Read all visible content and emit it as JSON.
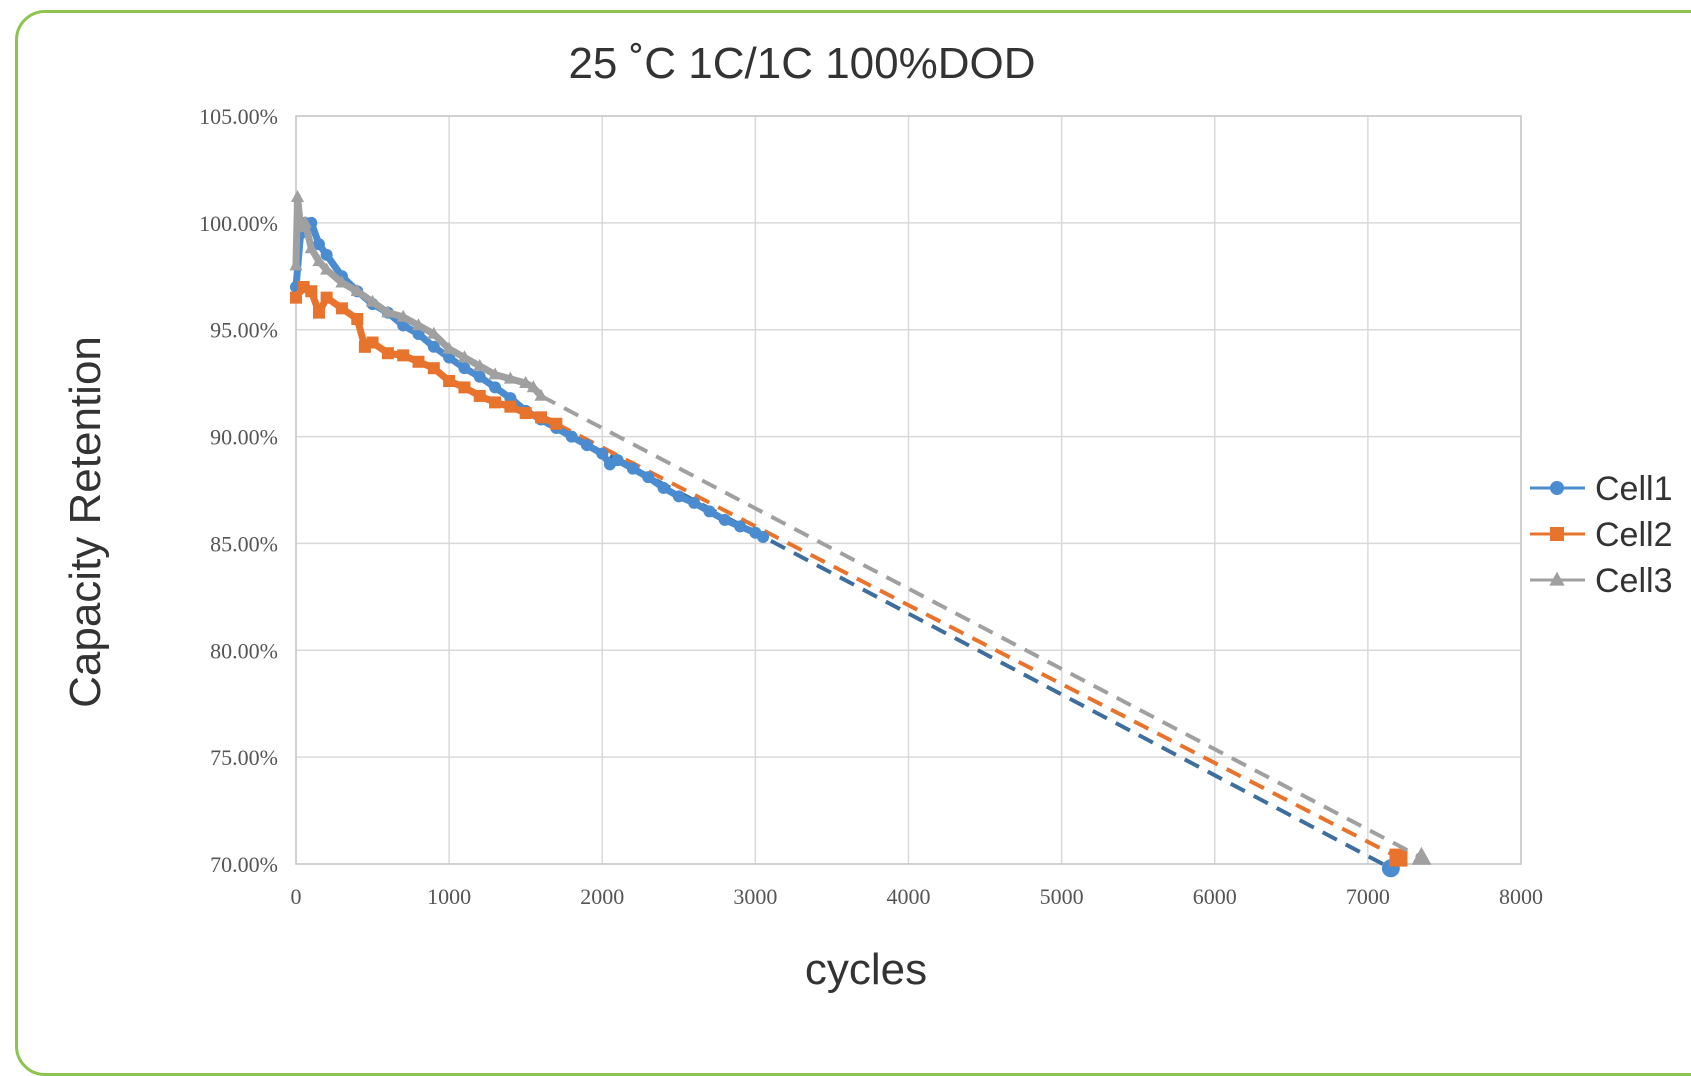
{
  "chart_data": {
    "type": "line",
    "title": "25 ˚C 1C/1C 100%DOD",
    "xlabel": "cycles",
    "ylabel": "Capacity Retention",
    "xlim": [
      0,
      8000
    ],
    "ylim": [
      70,
      105
    ],
    "x_ticks": [
      "0",
      "1000",
      "2000",
      "3000",
      "4000",
      "5000",
      "6000",
      "7000",
      "8000"
    ],
    "y_ticks": [
      "70.00%",
      "75.00%",
      "80.00%",
      "85.00%",
      "90.00%",
      "95.00%",
      "100.00%",
      "105.00%"
    ],
    "grid": true,
    "legend_position": "right",
    "series": [
      {
        "name": "Cell1",
        "color": "#4a8ccf",
        "marker": "circle",
        "x": [
          0,
          30,
          60,
          100,
          150,
          200,
          300,
          400,
          500,
          600,
          700,
          800,
          900,
          1000,
          1100,
          1200,
          1300,
          1400,
          1500,
          1600,
          1700,
          1800,
          1900,
          2000,
          2050,
          2100,
          2200,
          2300,
          2400,
          2500,
          2600,
          2700,
          2800,
          2900,
          3000,
          3050
        ],
        "y": [
          97.0,
          99.5,
          100.0,
          100.0,
          99.0,
          98.5,
          97.5,
          96.8,
          96.2,
          95.8,
          95.2,
          94.8,
          94.2,
          93.7,
          93.2,
          92.8,
          92.3,
          91.8,
          91.2,
          90.8,
          90.4,
          90.0,
          89.6,
          89.2,
          88.7,
          88.9,
          88.5,
          88.1,
          87.6,
          87.2,
          86.9,
          86.5,
          86.1,
          85.8,
          85.5,
          85.3
        ],
        "trend_x": [
          1600,
          7150
        ],
        "trend_y": [
          90.8,
          69.8
        ]
      },
      {
        "name": "Cell2",
        "color": "#e8732c",
        "marker": "square",
        "x": [
          0,
          50,
          100,
          150,
          200,
          300,
          400,
          450,
          500,
          600,
          700,
          800,
          900,
          1000,
          1100,
          1200,
          1300,
          1400,
          1500,
          1600,
          1700
        ],
        "y": [
          96.5,
          97.0,
          96.8,
          95.8,
          96.5,
          96.0,
          95.5,
          94.2,
          94.4,
          93.9,
          93.8,
          93.5,
          93.2,
          92.6,
          92.3,
          91.9,
          91.6,
          91.4,
          91.1,
          90.9,
          90.6
        ],
        "trend_x": [
          1700,
          7200
        ],
        "trend_y": [
          90.6,
          70.3
        ]
      },
      {
        "name": "Cell3",
        "color": "#a0a0a0",
        "marker": "triangle",
        "x": [
          0,
          10,
          30,
          60,
          100,
          150,
          200,
          300,
          400,
          500,
          600,
          700,
          800,
          900,
          1000,
          1100,
          1200,
          1300,
          1400,
          1500,
          1550,
          1600
        ],
        "y": [
          98.0,
          101.2,
          99.8,
          100.0,
          98.8,
          98.2,
          97.8,
          97.2,
          96.8,
          96.3,
          95.8,
          95.6,
          95.2,
          94.8,
          94.1,
          93.7,
          93.3,
          92.9,
          92.7,
          92.5,
          92.3,
          91.9
        ],
        "trend_x": [
          1600,
          7350
        ],
        "trend_y": [
          91.9,
          70.3
        ]
      }
    ]
  }
}
